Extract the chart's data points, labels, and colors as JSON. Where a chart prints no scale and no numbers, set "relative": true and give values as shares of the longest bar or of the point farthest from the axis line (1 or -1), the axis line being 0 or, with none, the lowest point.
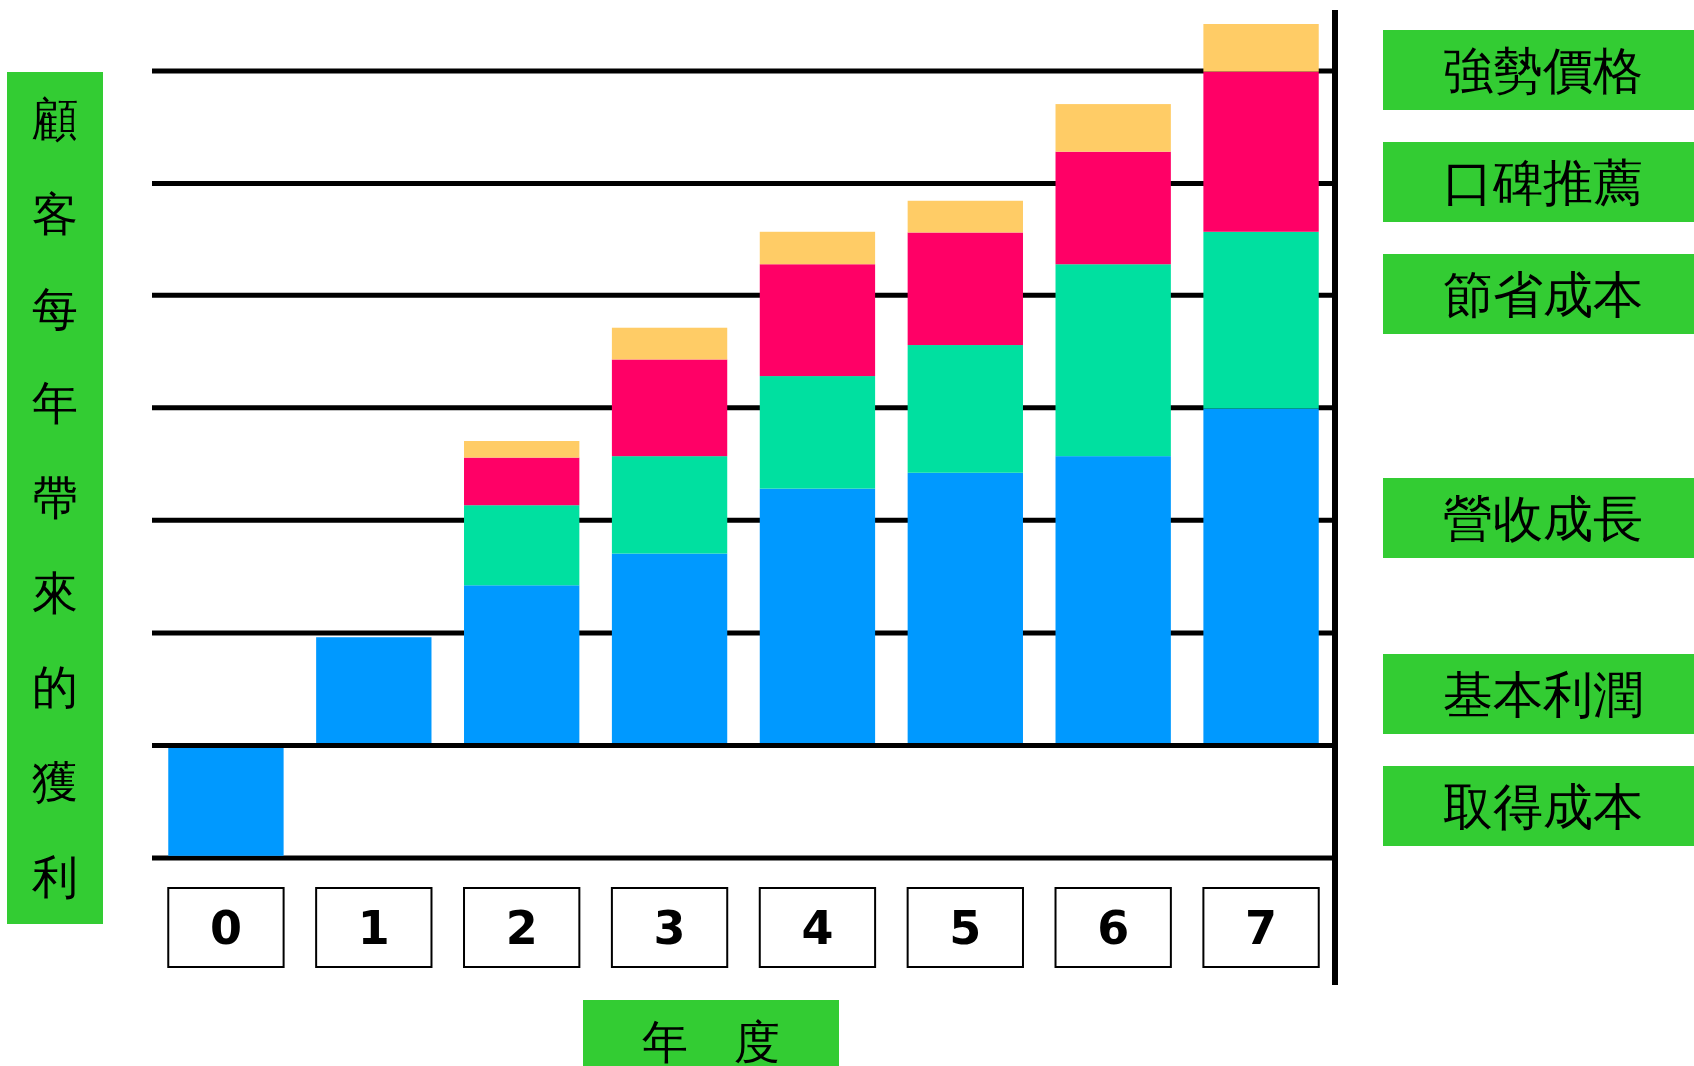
{
  "chart_data": {
    "type": "bar",
    "stacked": true,
    "relative": true,
    "xlabel": "年　度",
    "ylabel": "顧客每年帶來的獲利",
    "categories": [
      "0",
      "1",
      "2",
      "3",
      "4",
      "5",
      "6",
      "7"
    ],
    "series": [
      {
        "color": "#0099ff",
        "values": [
          -0.153,
          0.15,
          0.222,
          0.266,
          0.356,
          0.378,
          0.401,
          0.467
        ]
      },
      {
        "color": "#00e0a0",
        "values": [
          null,
          null,
          0.111,
          0.135,
          0.156,
          0.177,
          0.266,
          0.245
        ]
      },
      {
        "color": "#ff0066",
        "values": [
          null,
          null,
          0.066,
          0.134,
          0.155,
          0.156,
          0.156,
          0.222
        ]
      },
      {
        "color": "#ffcc66",
        "values": [
          null,
          null,
          0.023,
          0.044,
          0.045,
          0.044,
          0.066,
          0.066
        ]
      }
    ],
    "ref_lines": [
      {
        "axis": "y",
        "value": -0.156,
        "color": "#000000"
      },
      {
        "axis": "y",
        "value": 0.156,
        "color": "#000000"
      },
      {
        "axis": "y",
        "value": 0.312,
        "color": "#000000"
      },
      {
        "axis": "y",
        "value": 0.468,
        "color": "#000000"
      },
      {
        "axis": "y",
        "value": 0.624,
        "color": "#000000"
      },
      {
        "axis": "y",
        "value": 0.779,
        "color": "#000000"
      },
      {
        "axis": "y",
        "value": 0.935,
        "color": "#000000"
      }
    ],
    "annotations": [
      "強勢價格",
      "口碑推薦",
      "節省成本",
      "營收成長",
      "基本利潤",
      "取得成本"
    ]
  }
}
